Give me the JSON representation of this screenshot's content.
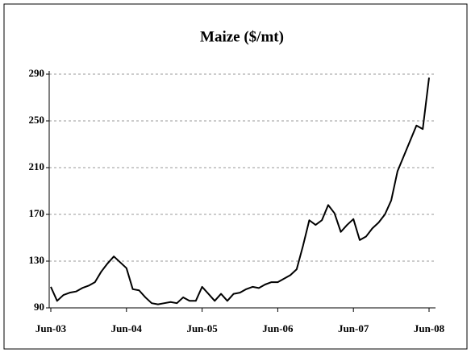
{
  "chart_data": {
    "type": "line",
    "title": "Maize ($/mt)",
    "categories": [
      "Jun-03",
      null,
      null,
      null,
      null,
      null,
      null,
      null,
      null,
      null,
      null,
      null,
      "Jun-04",
      null,
      null,
      null,
      null,
      null,
      null,
      null,
      null,
      null,
      null,
      null,
      "Jun-05",
      null,
      null,
      null,
      null,
      null,
      null,
      null,
      null,
      null,
      null,
      null,
      "Jun-06",
      null,
      null,
      null,
      null,
      null,
      null,
      null,
      null,
      null,
      null,
      null,
      "Jun-07",
      null,
      null,
      null,
      null,
      null,
      null,
      null,
      null,
      null,
      null,
      null,
      "Jun-08"
    ],
    "series": [
      {
        "color": "#000000",
        "values": [
          108,
          96,
          101,
          103,
          104,
          107,
          109,
          112,
          121,
          128,
          134,
          129,
          124,
          106,
          105,
          99,
          94,
          93,
          94,
          95,
          94,
          99,
          96,
          96,
          108,
          102,
          96,
          102,
          96,
          102,
          103,
          106,
          108,
          107,
          110,
          112,
          112,
          115,
          118,
          123,
          143,
          165,
          161,
          165,
          178,
          171,
          155,
          161,
          166,
          148,
          151,
          158,
          163,
          170,
          182,
          207,
          220,
          233,
          246,
          243,
          287
        ]
      }
    ],
    "ylim": [
      90,
      290
    ],
    "yticks": [
      90,
      130,
      170,
      210,
      250,
      290
    ],
    "grid": true
  }
}
